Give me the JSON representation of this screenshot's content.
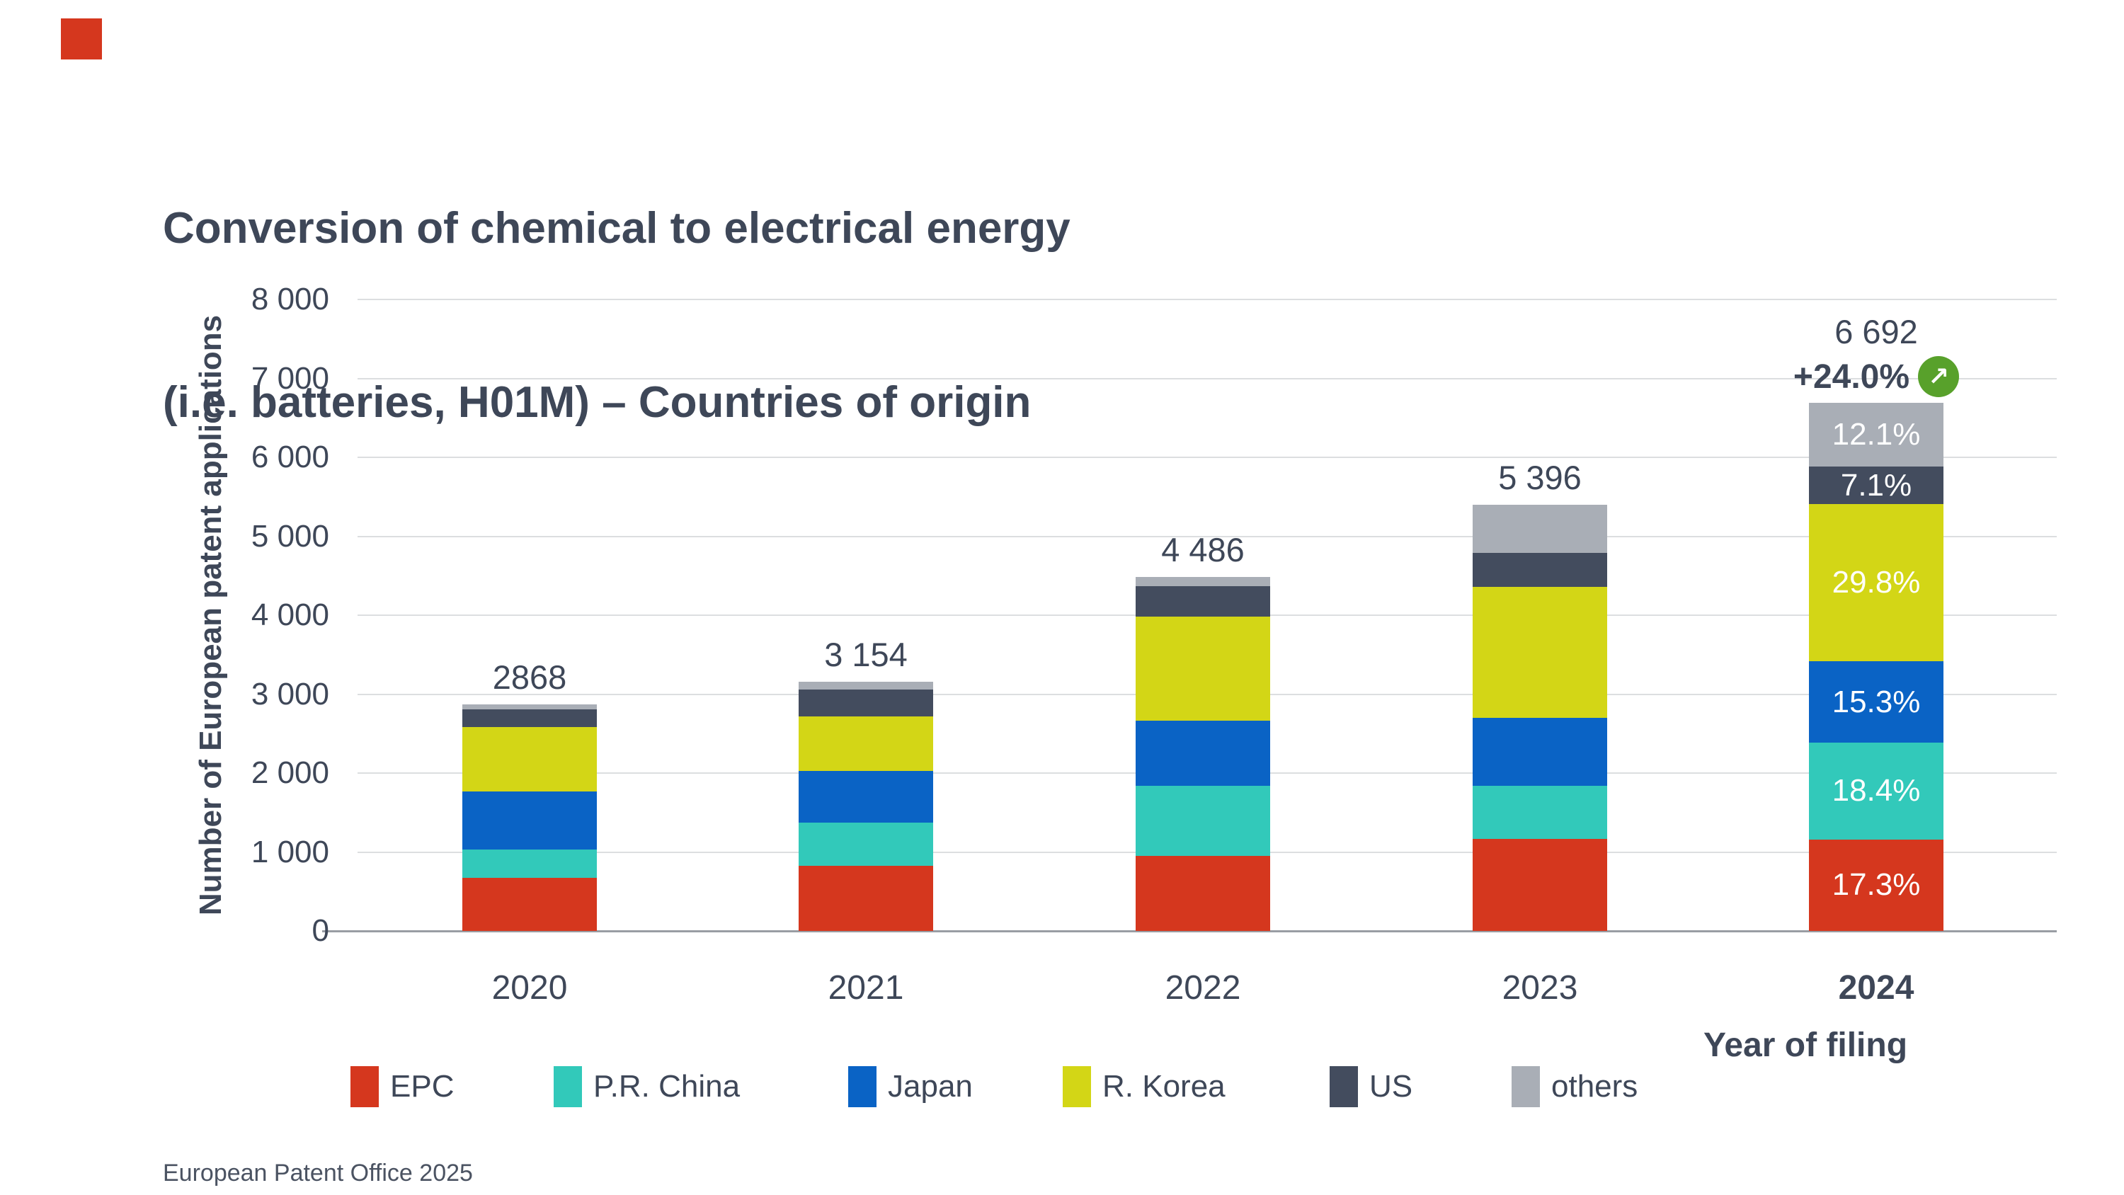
{
  "page": {
    "background": "#ffffff"
  },
  "logo": {
    "color": "#d5371e"
  },
  "title": {
    "line1": "Conversion of chemical to electrical energy",
    "line2": "(i.e. batteries, H01M) – Countries of origin"
  },
  "y_axis": {
    "label": "Number of European patent applications",
    "ticks": [
      {
        "label": "8 000",
        "value": 8000
      },
      {
        "label": "7 000",
        "value": 7000
      },
      {
        "label": "6 000",
        "value": 6000
      },
      {
        "label": "5 000",
        "value": 5000
      },
      {
        "label": "4 000",
        "value": 4000
      },
      {
        "label": "3 000",
        "value": 3000
      },
      {
        "label": "2 000",
        "value": 2000
      },
      {
        "label": "1 000",
        "value": 1000
      },
      {
        "label": "0",
        "value": 0
      }
    ]
  },
  "x_axis": {
    "label": "Year of filing"
  },
  "annotation_2024": {
    "growth": "+24.0%",
    "arrow_icon": "↗",
    "badge_color": "#58a12b"
  },
  "legend": {
    "items": [
      {
        "label": "EPC",
        "color": "#d5371e"
      },
      {
        "label": "P.R. China",
        "color": "#32c9ba"
      },
      {
        "label": "Japan",
        "color": "#0a63c5"
      },
      {
        "label": "R. Korea",
        "color": "#d3d616"
      },
      {
        "label": "US",
        "color": "#434c5e"
      },
      {
        "label": "others",
        "color": "#a9aeb6"
      }
    ]
  },
  "footer": {
    "text": "European Patent Office 2025"
  },
  "chart_data": {
    "type": "bar",
    "stacked": true,
    "title": "Conversion of chemical to electrical energy (i.e. batteries, H01M) – Countries of origin",
    "categories": [
      "2020",
      "2021",
      "2022",
      "2023",
      "2024"
    ],
    "series": [
      {
        "name": "EPC",
        "color": "#d5371e",
        "values": [
          670,
          828,
          950,
          1165,
          1158
        ]
      },
      {
        "name": "P.R. China",
        "color": "#32c9ba",
        "values": [
          360,
          547,
          890,
          675,
          1231
        ]
      },
      {
        "name": "Japan",
        "color": "#0a63c5",
        "values": [
          740,
          649,
          824,
          862,
          1024
        ]
      },
      {
        "name": "R. Korea",
        "color": "#d3d616",
        "values": [
          810,
          696,
          1320,
          1656,
          1994
        ]
      },
      {
        "name": "US",
        "color": "#434c5e",
        "values": [
          230,
          338,
          381,
          430,
          475
        ]
      },
      {
        "name": "others",
        "color": "#a9aeb6",
        "values": [
          58,
          96,
          121,
          608,
          810
        ]
      }
    ],
    "totals": [
      "2868",
      "3 154",
      "4 486",
      "5 396",
      "6 692"
    ],
    "segment_pct_labels_2024": [
      "17.3%",
      "18.4%",
      "15.3%",
      "29.8%",
      "7.1%",
      "12.1%"
    ],
    "growth_2024": "+24.0%",
    "xlabel": "Year of filing",
    "ylabel": "Number of European patent applications",
    "ylim": [
      0,
      8000
    ],
    "gridlines": true,
    "legend_position": "bottom"
  }
}
